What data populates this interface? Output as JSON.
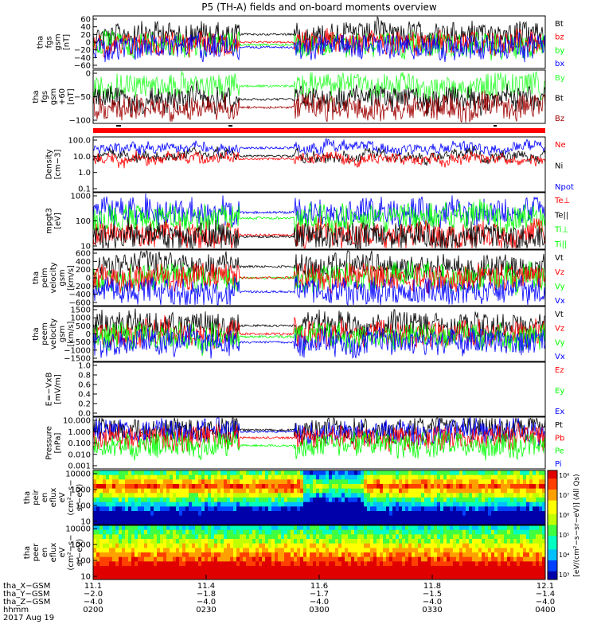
{
  "title": "P5 (TH-A) fields and on-board moments overview",
  "colors": {
    "black": "#000000",
    "red": "#ff0000",
    "green": "#00ff00",
    "blue": "#0000ff",
    "darkred": "#a00000",
    "brightgreen": "#2cff2c"
  },
  "chart_data": [
    {
      "type": "line",
      "ylabel_lines": [
        "tha",
        "fgs",
        "gsm",
        "[nT]"
      ],
      "ytick_labels": [
        "60",
        "40",
        "20",
        "0",
        "−20",
        "−40",
        "−60"
      ],
      "legend": [
        {
          "label": "Bt",
          "color": "#000000"
        },
        {
          "label": "bz",
          "color": "#ff0000"
        },
        {
          "label": "by",
          "color": "#00ff00"
        },
        {
          "label": "bx",
          "color": "#0000ff"
        }
      ]
    },
    {
      "type": "line",
      "ylabel_lines": [
        "tha",
        "fgs",
        "gsm",
        "+60",
        "[nT]"
      ],
      "ytick_labels": [
        "0",
        "−50",
        "−100"
      ],
      "legend": [
        {
          "label": "By",
          "color": "#2cff2c"
        },
        {
          "label": "Bt",
          "color": "#000000"
        },
        {
          "label": "Bz",
          "color": "#a00000"
        }
      ]
    },
    {
      "type": "line",
      "ylabel_lines": [
        "Density",
        "[cm−3]"
      ],
      "ytick_labels": [
        "100.0",
        "10.0",
        "1.0",
        "0.1"
      ],
      "legend": [
        {
          "label": "Ne",
          "color": "#ff0000"
        },
        {
          "label": "Ni",
          "color": "#000000"
        },
        {
          "label": "Npot",
          "color": "#0000ff"
        }
      ]
    },
    {
      "type": "line",
      "ylabel_lines": [
        "mpgt3",
        "[eV]"
      ],
      "ytick_labels": [
        "1000",
        "100",
        "10"
      ],
      "legend": [
        {
          "label": "Te⊥",
          "color": "#ff0000"
        },
        {
          "label": "Te||",
          "color": "#000000"
        },
        {
          "label": "Ti⊥",
          "color": "#00ff00"
        },
        {
          "label": "Ti||",
          "color": "#00ff00"
        }
      ]
    },
    {
      "type": "line",
      "ylabel_lines": [
        "tha",
        "peim",
        "velocity",
        "gsm",
        "[km/s]"
      ],
      "ytick_labels": [
        "600",
        "400",
        "200",
        "0",
        "−200",
        "−400",
        "−600"
      ],
      "legend": [
        {
          "label": "Vt",
          "color": "#000000"
        },
        {
          "label": "Vz",
          "color": "#ff0000"
        },
        {
          "label": "Vy",
          "color": "#00ff00"
        },
        {
          "label": "Vx",
          "color": "#0000ff"
        }
      ]
    },
    {
      "type": "line",
      "ylabel_lines": [
        "tha",
        "peem",
        "velocity",
        "gsm",
        "[km/s]"
      ],
      "ytick_labels": [
        "1500",
        "1000",
        "500",
        "0",
        "−500",
        "−1000",
        "−1500"
      ],
      "legend": [
        {
          "label": "Vt",
          "color": "#000000"
        },
        {
          "label": "Vz",
          "color": "#ff0000"
        },
        {
          "label": "Vy",
          "color": "#00ff00"
        },
        {
          "label": "Vx",
          "color": "#0000ff"
        }
      ]
    },
    {
      "type": "line",
      "ylabel_lines": [
        "E=−VxB",
        "[mV/m]"
      ],
      "ytick_labels": [
        "1.0",
        "0.8",
        "0.6",
        "0.4",
        "0.2",
        "0.0"
      ],
      "legend": [
        {
          "label": "Ez",
          "color": "#ff0000"
        },
        {
          "label": "Ey",
          "color": "#00ff00"
        },
        {
          "label": "Ex",
          "color": "#0000ff"
        }
      ]
    },
    {
      "type": "line",
      "ylabel_lines": [
        "Pressure",
        "[nPa]"
      ],
      "ytick_labels": [
        "10.000",
        "1.000",
        "0.100",
        "0.010",
        "0.001"
      ],
      "legend": [
        {
          "label": "Pt",
          "color": "#000000"
        },
        {
          "label": "Pb",
          "color": "#ff0000"
        },
        {
          "label": "Pe",
          "color": "#00ff00"
        },
        {
          "label": "Pi",
          "color": "#0000ff"
        }
      ]
    },
    {
      "type": "heatmap",
      "ylabel_lines": [
        "tha",
        "peir",
        "en",
        "eflux",
        "eV",
        "(cm²−s−",
        "sr−eV)"
      ],
      "ytick_labels": [
        "10000",
        "1000",
        "100",
        "10"
      ]
    },
    {
      "type": "heatmap",
      "ylabel_lines": [
        "tha",
        "peer",
        "en",
        "eflux",
        "eV",
        "(cm²−s−",
        "sr−eV)"
      ],
      "ytick_labels": [
        "10000",
        "1000",
        "100",
        "10"
      ]
    }
  ],
  "colorbar": {
    "tick_labels": [
      "10⁸",
      "10⁷",
      "10⁶",
      "10⁵",
      "10⁴",
      "10³"
    ],
    "label": "[eV/(cm²−s−sr−eV)] (All Qs)"
  },
  "x_axis": {
    "row_labels": [
      "tha_X−GSM",
      "tha_Y−GSM",
      "tha_Z−GSM",
      "hhmm",
      "2017 Aug 19"
    ],
    "ticks": [
      {
        "x": "11.1",
        "y": "−2.0",
        "z": "−4.0",
        "time": "0200"
      },
      {
        "x": "11.4",
        "y": "−1.8",
        "z": "−4.0",
        "time": "0230"
      },
      {
        "x": "11.6",
        "y": "−1.7",
        "z": "−4.0",
        "time": "0300"
      },
      {
        "x": "11.8",
        "y": "−1.5",
        "z": "−4.0",
        "time": "0330"
      },
      {
        "x": "12.1",
        "y": "−1.4",
        "z": "−4.0",
        "time": "0400"
      }
    ]
  }
}
